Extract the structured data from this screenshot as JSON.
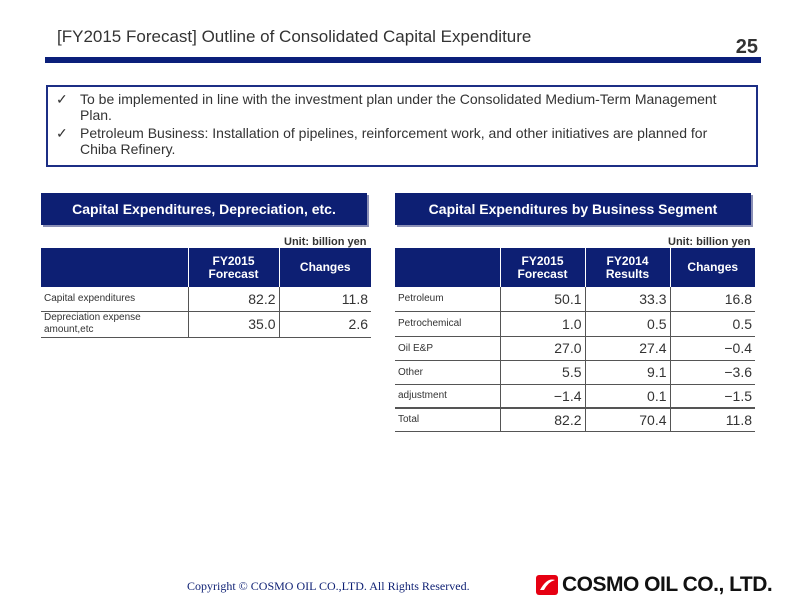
{
  "header": {
    "title": "[FY2015 Forecast] Outline of Consolidated Capital Expenditure",
    "page_number": "25"
  },
  "bullets": [
    {
      "icon": "check-icon",
      "text": "To be implemented in line with the investment plan under the Consolidated Medium-Term Management Plan."
    },
    {
      "icon": "check-icon",
      "text": "Petroleum Business: Installation of pipelines, reinforcement work, and other initiatives are planned for Chiba Refinery."
    }
  ],
  "left_panel": {
    "title": "Capital Expenditures, Depreciation, etc.",
    "unit": "Unit: billion yen",
    "columns": [
      "",
      "FY2015\nForecast",
      "Changes"
    ],
    "rows": [
      {
        "label": "Capital expenditures",
        "forecast": "82.2",
        "changes": "11.8"
      },
      {
        "label": "Depreciation expense amount,etc",
        "forecast": "35.0",
        "changes": "2.6"
      }
    ]
  },
  "right_panel": {
    "title": "Capital Expenditures by Business Segment",
    "unit": "Unit: billion yen",
    "columns": [
      "",
      "FY2015\nForecast",
      "FY2014\nResults",
      "Changes"
    ],
    "rows": [
      {
        "label": "Petroleum",
        "forecast": "50.1",
        "results": "33.3",
        "changes": "16.8"
      },
      {
        "label": "Petrochemical",
        "forecast": "1.0",
        "results": "0.5",
        "changes": "0.5"
      },
      {
        "label": "Oil E&P",
        "forecast": "27.0",
        "results": "27.4",
        "changes": "−0.4"
      },
      {
        "label": "Other",
        "forecast": "5.5",
        "results": "9.1",
        "changes": "−3.6"
      },
      {
        "label": "adjustment",
        "forecast": "−1.4",
        "results": "0.1",
        "changes": "−1.5"
      },
      {
        "label": "Total",
        "forecast": "82.2",
        "results": "70.4",
        "changes": "11.8"
      }
    ]
  },
  "footer": {
    "copyright": "Copyright © COSMO OIL CO.,LTD. All Rights Reserved.",
    "logo_text": "COSMO OIL CO., LTD.",
    "colors": {
      "brand_navy": "#0d1f73",
      "logo_red": "#e60012"
    }
  }
}
